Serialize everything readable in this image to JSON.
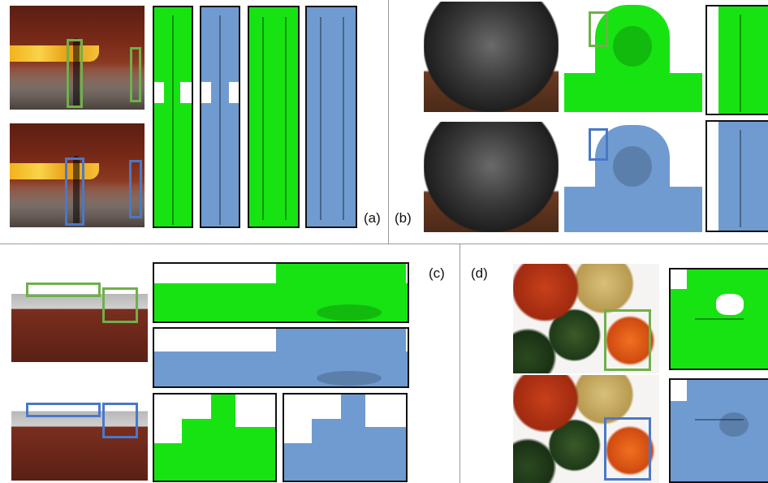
{
  "labels": {
    "a": "(a)",
    "b": "(b)",
    "c": "(c)",
    "d": "(d)"
  },
  "colors": {
    "green_mesh": "#17e312",
    "blue_mesh": "#6f9bd1",
    "green_box": "#6fb04a",
    "blue_box": "#4a78c8"
  }
}
